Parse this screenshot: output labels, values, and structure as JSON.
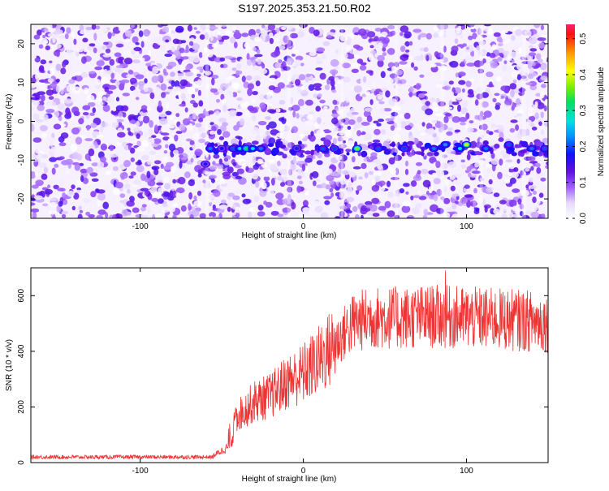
{
  "page_title": "S197.2025.353.21.50.R02",
  "chart_data": [
    {
      "type": "heatmap",
      "title": "S197.2025.353.21.50.R02",
      "xlabel": "Height of straight line (km)",
      "ylabel": "Frequency (Hz)",
      "xlim": [
        -167,
        150
      ],
      "ylim": [
        -25,
        25
      ],
      "x_ticks": [
        -100,
        0,
        100
      ],
      "x_tick_labels": [
        "-100",
        "0",
        "100"
      ],
      "y_ticks": [
        -20,
        -10,
        0,
        10,
        20
      ],
      "y_tick_labels": [
        "-20",
        "-10",
        "0",
        "10",
        "20"
      ],
      "colorbar": {
        "label": "Normalized spectral amplitude",
        "range": [
          0,
          0.54
        ],
        "ticks": [
          0.0,
          0.1,
          0.2,
          0.3,
          0.4,
          0.5
        ],
        "tick_labels": [
          "0.0",
          "0.1",
          "0.2",
          "0.3",
          "0.4",
          "0.5"
        ],
        "colormap": "white-purple-blue-cyan-green-yellow-red"
      },
      "background_noise_amplitude": [
        0.0,
        0.15
      ],
      "signal_band": {
        "frequency_hz": -7,
        "x_start_km": -60,
        "x_end_km": 150,
        "peaks": [
          {
            "x": -57,
            "y": -7,
            "amp": 0.2
          },
          {
            "x": -50,
            "y": -7,
            "amp": 0.15
          },
          {
            "x": -43,
            "y": -7,
            "amp": 0.18
          },
          {
            "x": -39,
            "y": -7,
            "amp": 0.25
          },
          {
            "x": -35,
            "y": -7,
            "amp": 0.33
          },
          {
            "x": -31,
            "y": -7,
            "amp": 0.26
          },
          {
            "x": -26,
            "y": -7,
            "amp": 0.2
          },
          {
            "x": -60,
            "y": -11,
            "amp": 0.14
          },
          {
            "x": -4,
            "y": -7,
            "amp": 0.16
          },
          {
            "x": 12,
            "y": -7,
            "amp": 0.18
          },
          {
            "x": 19,
            "y": -7,
            "amp": 0.17
          },
          {
            "x": 33,
            "y": -7,
            "amp": 0.38
          },
          {
            "x": 46,
            "y": -7,
            "amp": 0.18
          },
          {
            "x": 62,
            "y": -7,
            "amp": 0.17
          },
          {
            "x": 80,
            "y": -7,
            "amp": 0.2
          },
          {
            "x": 87,
            "y": -6,
            "amp": 0.22
          },
          {
            "x": 96,
            "y": -7,
            "amp": 0.26
          },
          {
            "x": 100,
            "y": -6,
            "amp": 0.42
          },
          {
            "x": 112,
            "y": -7,
            "amp": 0.2
          },
          {
            "x": 126,
            "y": -6,
            "amp": 0.18
          },
          {
            "x": 140,
            "y": -7,
            "amp": 0.2
          },
          {
            "x": 148,
            "y": -7,
            "amp": 0.18
          }
        ]
      }
    },
    {
      "type": "line",
      "xlabel": "Height of straight line (km)",
      "ylabel": "SNR (10 * v/v)",
      "xlim": [
        -167,
        150
      ],
      "ylim": [
        0,
        700
      ],
      "x_ticks": [
        -100,
        0,
        100
      ],
      "x_tick_labels": [
        "-100",
        "0",
        "100"
      ],
      "y_ticks": [
        0,
        200,
        400,
        600
      ],
      "y_tick_labels": [
        "0",
        "200",
        "400",
        "600"
      ],
      "color": "#ee3333",
      "baseline_x": [
        -167,
        -55
      ],
      "baseline_y": 20,
      "trend_x": [
        -55,
        -45,
        -40,
        -30,
        -20,
        -10,
        0,
        10,
        20,
        30,
        40,
        60,
        80,
        100,
        120,
        150
      ],
      "trend_y": [
        25,
        60,
        170,
        220,
        240,
        290,
        320,
        370,
        430,
        500,
        520,
        520,
        525,
        520,
        515,
        505
      ],
      "max_peak": {
        "x": 87,
        "y": 690
      }
    }
  ]
}
